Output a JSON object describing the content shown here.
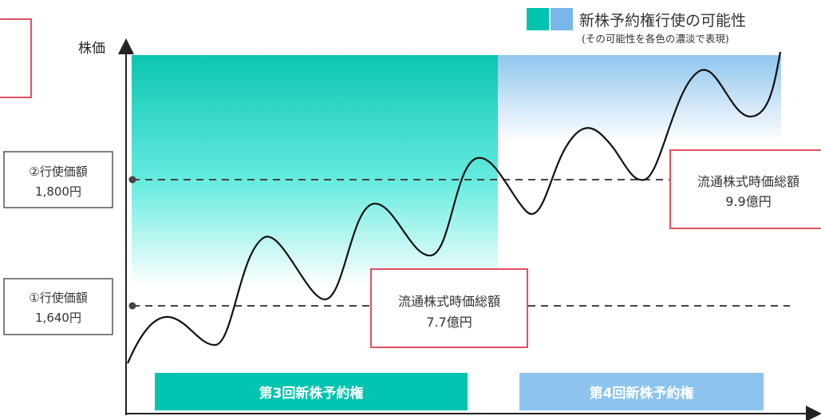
{
  "legend": {
    "title": "新株予約権行使の可能性",
    "note": "(その可能性を各色の濃淡で表現)",
    "color_teal": "#00c4b0",
    "color_blue": "#78b7ea"
  },
  "axis": {
    "y_label": "株価"
  },
  "exercise_price_2": {
    "line1": "②行使価額",
    "line2": "1,800円"
  },
  "exercise_price_1": {
    "line1": "①行使価額",
    "line2": "1,640円"
  },
  "market_cap_right": {
    "line1": "流通株式時価総額",
    "line2": "9.9億円"
  },
  "market_cap_center": {
    "line1": "流通株式時価総額",
    "line2": "7.7億円"
  },
  "bands": {
    "third": {
      "label": "第3回新株予約権",
      "color": "#00c4b0"
    },
    "fourth": {
      "label": "第4回新株予約権",
      "color": "#8cc4ee"
    }
  },
  "colors": {
    "box_border_red": "#e05060",
    "box_border_gray": "#555555",
    "dashed_line": "#444444"
  }
}
